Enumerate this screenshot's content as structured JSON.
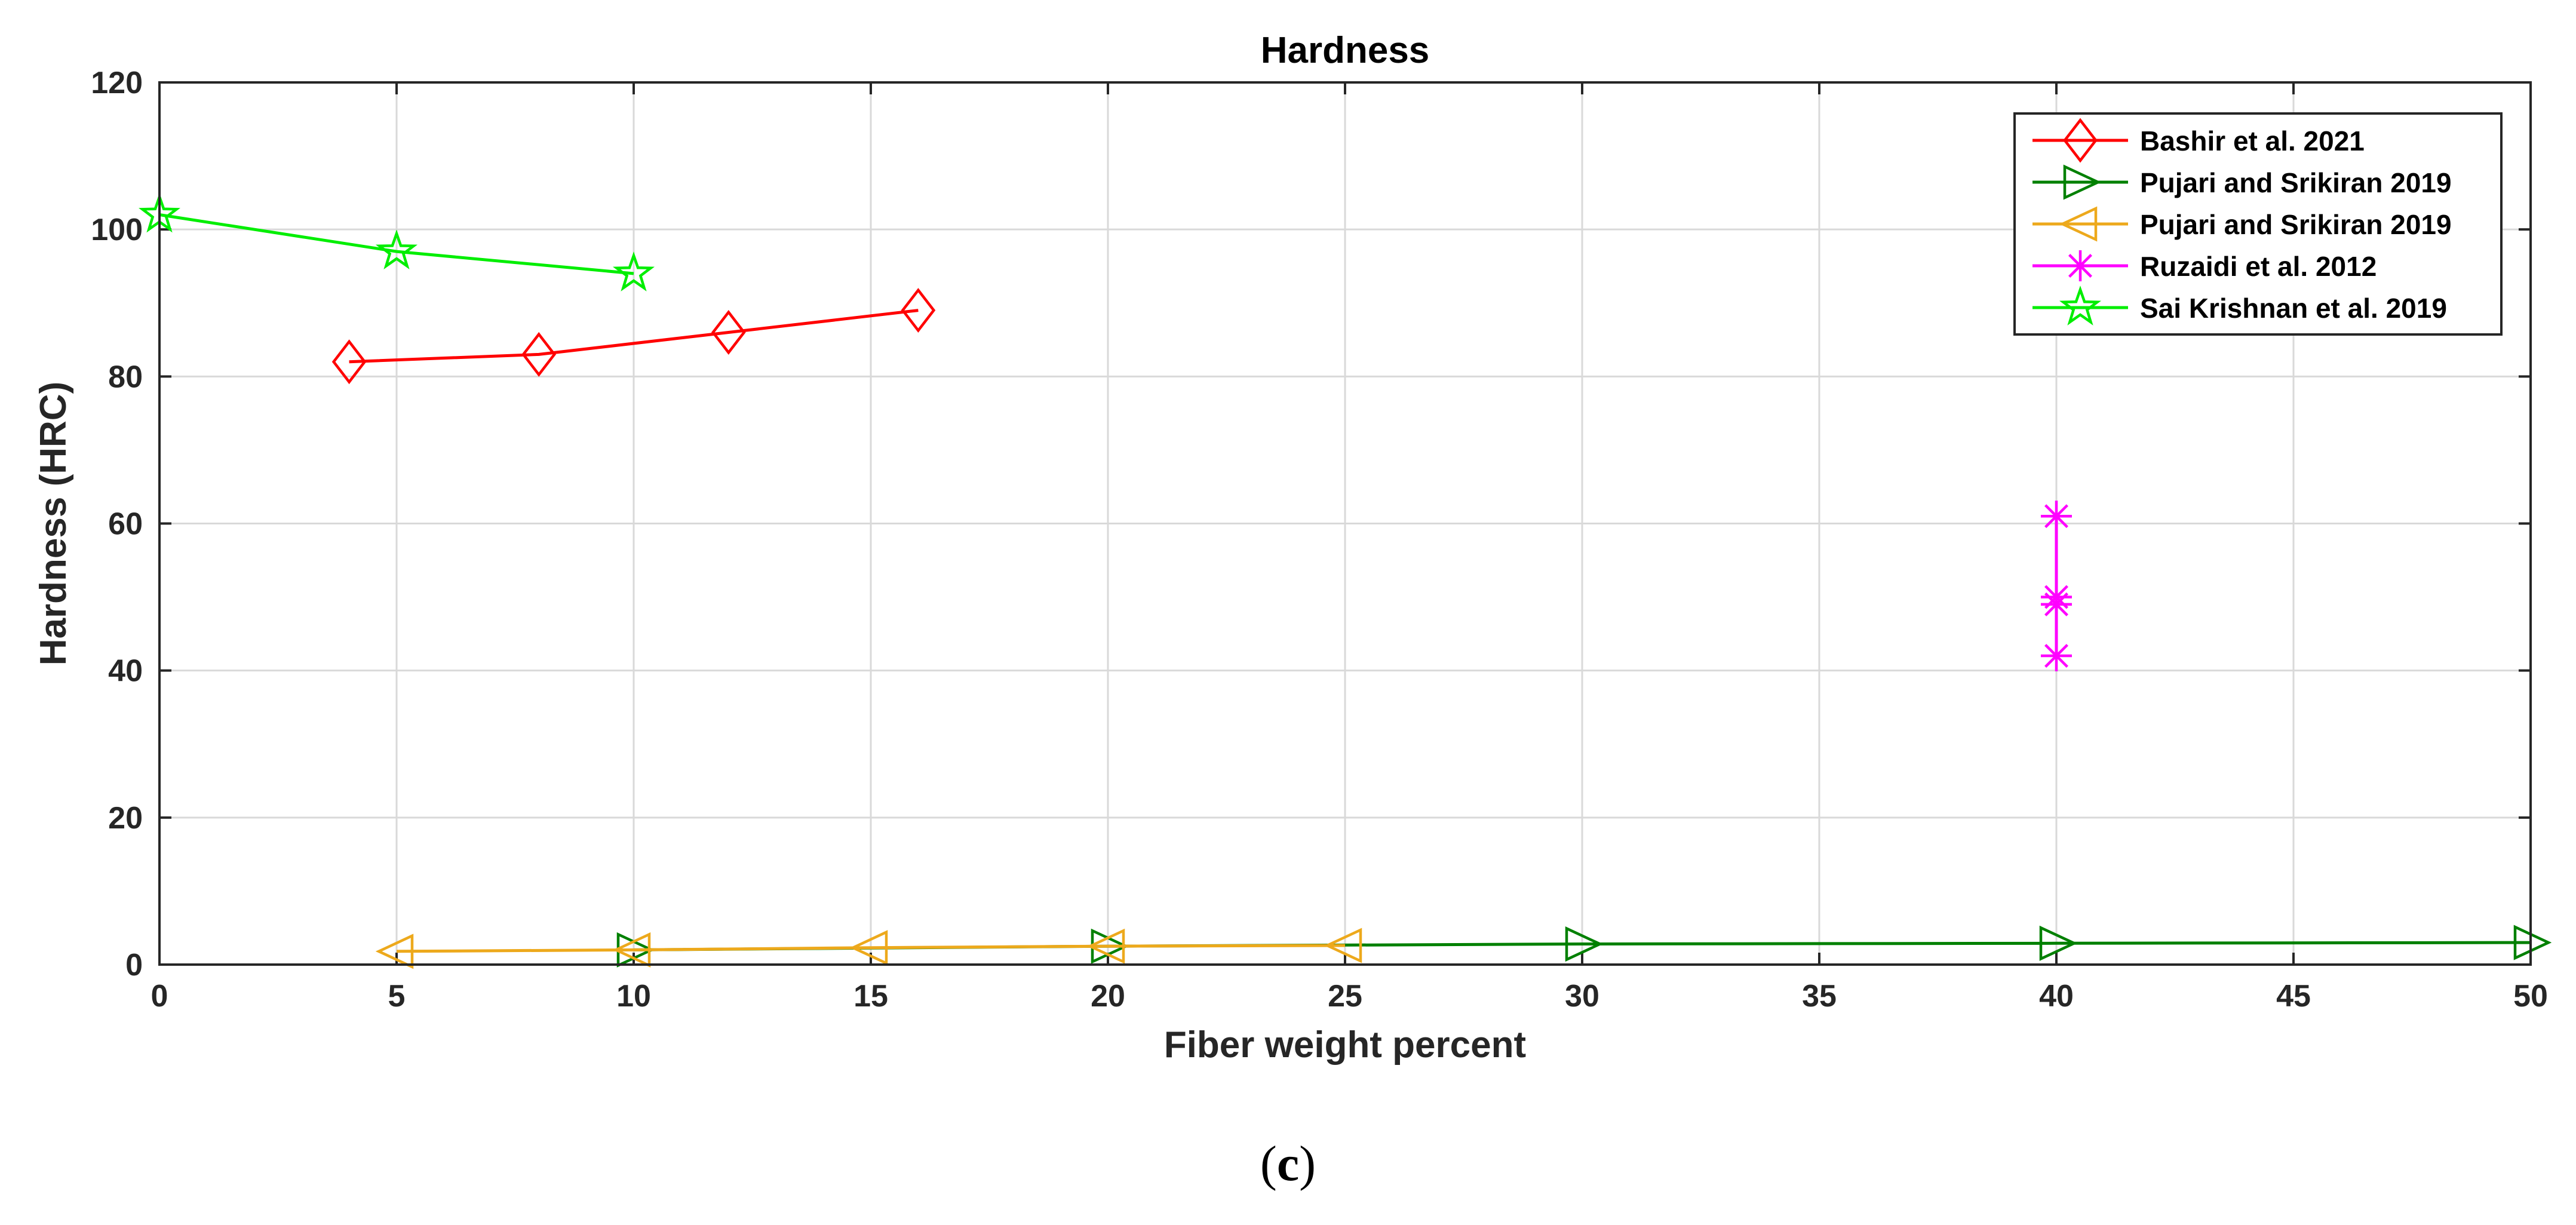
{
  "caption": {
    "open": "(",
    "letter": "c",
    "close": ")"
  },
  "chart_data": {
    "type": "line",
    "title": "Hardness",
    "xlabel": "Fiber weight percent",
    "ylabel": "Hardness (HRC)",
    "xlim": [
      0,
      50
    ],
    "ylim": [
      0,
      120
    ],
    "xticks": [
      0,
      5,
      10,
      15,
      20,
      25,
      30,
      35,
      40,
      45,
      50
    ],
    "yticks": [
      0,
      20,
      40,
      60,
      80,
      100,
      120
    ],
    "grid": true,
    "legend_position": "top-right",
    "series": [
      {
        "name": "Bashir et al. 2021",
        "color": "#ff0000",
        "marker": "diamond",
        "x": [
          4,
          8,
          12,
          16
        ],
        "y": [
          82,
          83,
          86,
          89
        ]
      },
      {
        "name": "Pujari and Srikiran 2019",
        "color": "#008000",
        "marker": "triangle-right",
        "x": [
          10,
          20,
          30,
          40,
          50
        ],
        "y": [
          2,
          2.5,
          2.8,
          2.9,
          3
        ]
      },
      {
        "name": "Pujari and Srikiran 2019",
        "color": "#eda91c",
        "marker": "triangle-left",
        "x": [
          5,
          10,
          15,
          20,
          25
        ],
        "y": [
          1.8,
          2,
          2.3,
          2.5,
          2.6
        ]
      },
      {
        "name": "Ruzaidi et al. 2012",
        "color": "#ff00ff",
        "marker": "asterisk",
        "x": [
          40,
          40,
          40,
          40
        ],
        "y": [
          42,
          49,
          50,
          61
        ]
      },
      {
        "name": "Sai Krishnan et al. 2019",
        "color": "#00ee00",
        "marker": "pentagram",
        "x": [
          0,
          5,
          10
        ],
        "y": [
          102,
          97,
          94
        ]
      }
    ]
  }
}
